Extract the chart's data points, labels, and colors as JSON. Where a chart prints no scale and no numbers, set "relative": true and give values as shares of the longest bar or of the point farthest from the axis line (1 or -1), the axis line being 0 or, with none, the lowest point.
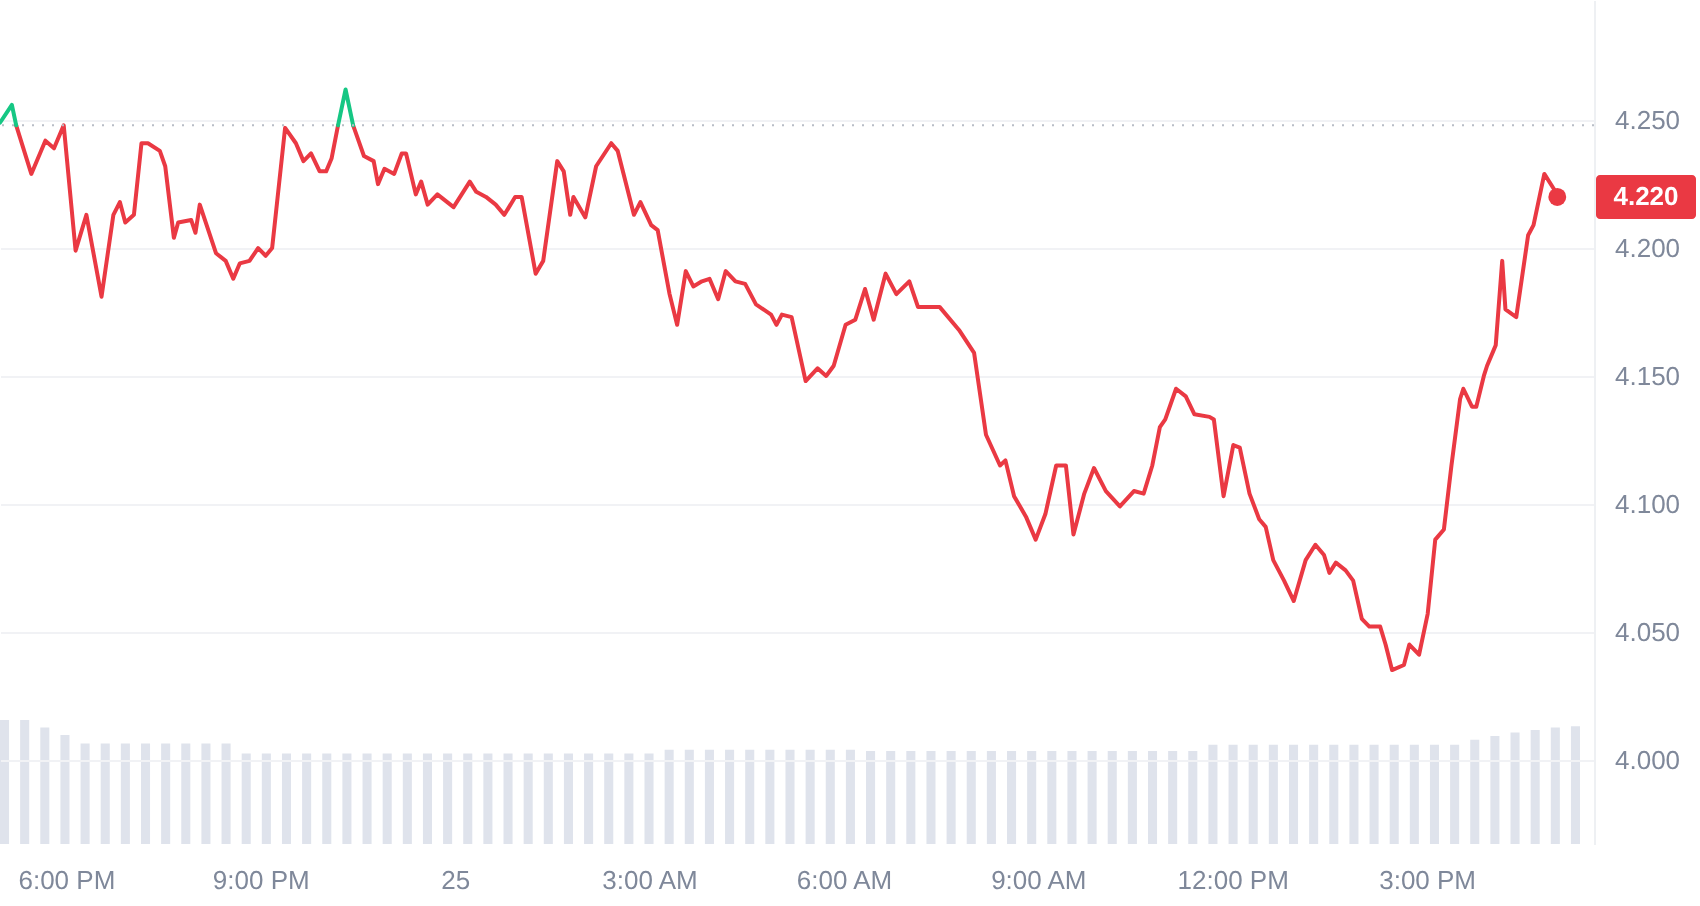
{
  "chart_data": [
    {
      "type": "line",
      "xlim": [
        "--01-24T16:59",
        "--01-25T17:35"
      ],
      "ylim": [
        3.967,
        4.297
      ],
      "xticks": [
        {
          "value": "--01-24T18:00",
          "label": "6:00 PM"
        },
        {
          "value": "--01-24T21:00",
          "label": "9:00 PM"
        },
        {
          "value": "--01-25",
          "label": "25"
        },
        {
          "value": "--01-25T03:00",
          "label": "3:00 AM"
        },
        {
          "value": "--01-25T06:00",
          "label": "6:00 AM"
        },
        {
          "value": "--01-25T09:00",
          "label": "9:00 AM"
        },
        {
          "value": "--01-25T12:00",
          "label": "12:00 PM"
        },
        {
          "value": "--01-25T15:00",
          "label": "3:00 PM"
        }
      ],
      "yticks": [
        {
          "value": 4,
          "label": "4.000"
        },
        {
          "value": 4.05,
          "label": "4.050"
        },
        {
          "value": 4.1,
          "label": "4.100"
        },
        {
          "value": 4.15,
          "label": "4.150"
        },
        {
          "value": 4.2,
          "label": "4.200"
        },
        {
          "value": 4.25,
          "label": "4.250"
        }
      ],
      "grid": "y",
      "ref_lines": [
        {
          "axis": "y",
          "value": 4.248,
          "line_style": "dotted",
          "color": "#b8bdc6"
        }
      ],
      "annotations": [
        {
          "text": "4.220",
          "x": "--01-25T17:01",
          "y": 4.22
        }
      ],
      "series": [
        {
          "color": "#ea3943",
          "x": [
            "--01-24T17:14",
            "--01-24T17:28",
            "--01-24T17:41",
            "--01-24T17:49",
            "--01-24T17:58",
            "--01-24T18:09",
            "--01-24T18:19",
            "--01-24T18:33",
            "--01-24T18:44",
            "--01-24T18:50",
            "--01-24T18:55",
            "--01-24T19:03",
            "--01-24T19:10",
            "--01-24T19:16",
            "--01-24T19:27",
            "--01-24T19:32",
            "--01-24T19:40",
            "--01-24T19:44",
            "--01-24T19:56",
            "--01-24T20:00",
            "--01-24T20:04",
            "--01-24T20:19",
            "--01-24T20:28",
            "--01-24T20:35",
            "--01-24T20:41",
            "--01-24T20:50",
            "--01-24T20:58",
            "--01-24T21:05",
            "--01-24T21:11",
            "--01-24T21:23",
            "--01-24T21:33",
            "--01-24T21:40",
            "--01-24T21:47",
            "--01-24T21:55",
            "--01-24T22:01",
            "--01-24T22:06",
            "--01-24T22:12",
            "--01-24T22:19",
            "--01-24T22:26",
            "--01-24T22:36",
            "--01-24T22:45",
            "--01-24T22:49",
            "--01-24T22:55",
            "--01-24T23:04",
            "--01-24T23:11",
            "--01-24T23:15",
            "--01-24T23:24",
            "--01-24T23:29",
            "--01-24T23:35",
            "--01-24T23:44",
            "--01-24T23:59",
            "--01-25T00:14",
            "--01-25T00:20",
            "--01-25T00:29",
            "--01-25T00:38",
            "--01-25T00:46",
            "--01-25T00:56",
            "--01-25T01:02",
            "--01-25T01:15",
            "--01-25T01:22",
            "--01-25T01:35",
            "--01-25T01:41",
            "--01-25T01:47",
            "--01-25T01:50",
            "--01-25T02:01",
            "--01-25T02:11",
            "--01-25T02:25",
            "--01-25T02:31",
            "--01-25T02:46",
            "--01-25T02:52",
            "--01-25T03:02",
            "--01-25T03:08",
            "--01-25T03:19",
            "--01-25T03:26",
            "--01-25T03:34",
            "--01-25T03:41",
            "--01-25T03:49",
            "--01-25T03:56",
            "--01-25T04:04",
            "--01-25T04:11",
            "--01-25T04:20",
            "--01-25T04:29",
            "--01-25T04:39",
            "--01-25T04:53",
            "--01-25T04:58",
            "--01-25T05:03",
            "--01-25T05:12",
            "--01-25T05:25",
            "--01-25T05:36",
            "--01-25T05:44",
            "--01-25T05:51",
            "--01-25T06:02",
            "--01-25T06:11",
            "--01-25T06:20",
            "--01-25T06:28",
            "--01-25T06:39",
            "--01-25T06:49",
            "--01-25T07:01",
            "--01-25T07:09",
            "--01-25T07:29",
            "--01-25T07:47",
            "--01-25T08:01",
            "--01-25T08:12",
            "--01-25T08:25",
            "--01-25T08:30",
            "--01-25T08:38",
            "--01-25T08:49",
            "--01-25T08:58",
            "--01-25T09:07",
            "--01-25T09:17",
            "--01-25T09:26",
            "--01-25T09:33",
            "--01-25T09:43",
            "--01-25T09:52",
            "--01-25T10:03",
            "--01-25T10:16",
            "--01-25T10:29",
            "--01-25T10:38",
            "--01-25T10:46",
            "--01-25T10:53",
            "--01-25T10:58",
            "--01-25T11:08",
            "--01-25T11:17",
            "--01-25T11:25",
            "--01-25T11:39",
            "--01-25T11:43",
            "--01-25T11:52",
            "--01-25T12:01",
            "--01-25T12:07",
            "--01-25T12:16",
            "--01-25T12:25",
            "--01-25T12:31",
            "--01-25T12:38",
            "--01-25T12:48",
            "--01-25T12:57",
            "--01-25T13:08",
            "--01-25T13:17",
            "--01-25T13:25",
            "--01-25T13:30",
            "--01-25T13:36",
            "--01-25T13:45",
            "--01-25T13:52",
            "--01-25T14:00",
            "--01-25T14:07",
            "--01-25T14:17",
            "--01-25T14:22",
            "--01-25T14:28",
            "--01-25T14:39",
            "--01-25T14:44",
            "--01-25T14:53",
            "--01-25T15:01",
            "--01-25T15:08",
            "--01-25T15:16",
            "--01-25T15:23",
            "--01-25T15:31",
            "--01-25T15:34",
            "--01-25T15:42",
            "--01-25T15:46",
            "--01-25T15:53",
            "--01-25T15:56",
            "--01-25T16:02",
            "--01-25T16:04",
            "--01-25T16:10",
            "--01-25T16:13",
            "--01-25T16:23",
            "--01-25T16:34",
            "--01-25T16:39",
            "--01-25T16:49",
            "--01-25T16:58",
            "--01-25T17:01"
          ],
          "values": [
            4.248,
            4.229,
            4.242,
            4.239,
            4.248,
            4.199,
            4.213,
            4.181,
            4.213,
            4.218,
            4.21,
            4.213,
            4.241,
            4.241,
            4.238,
            4.232,
            4.204,
            4.21,
            4.211,
            4.206,
            4.217,
            4.198,
            4.195,
            4.188,
            4.194,
            4.195,
            4.2,
            4.197,
            4.2,
            4.247,
            4.241,
            4.234,
            4.237,
            4.23,
            4.23,
            4.235,
            4.248,
            null,
            4.248,
            4.236,
            4.234,
            4.225,
            4.231,
            4.229,
            4.237,
            4.237,
            4.221,
            4.226,
            4.217,
            4.221,
            4.216,
            4.226,
            4.222,
            4.22,
            4.217,
            4.213,
            4.22,
            4.22,
            4.19,
            4.195,
            4.234,
            4.23,
            4.213,
            4.22,
            4.212,
            4.232,
            4.241,
            4.238,
            4.213,
            4.218,
            4.209,
            4.207,
            4.182,
            4.17,
            4.191,
            4.185,
            4.187,
            4.188,
            4.18,
            4.191,
            4.187,
            4.186,
            4.178,
            4.174,
            4.17,
            4.174,
            4.173,
            4.148,
            4.153,
            4.15,
            4.154,
            4.17,
            4.172,
            4.184,
            4.172,
            4.19,
            4.182,
            4.187,
            4.177,
            4.177,
            4.168,
            4.159,
            4.127,
            4.115,
            4.117,
            4.103,
            4.095,
            4.086,
            4.096,
            4.115,
            4.115,
            4.088,
            4.104,
            4.114,
            4.105,
            4.099,
            4.105,
            4.104,
            4.115,
            4.13,
            4.133,
            4.145,
            4.142,
            4.135,
            4.134,
            4.133,
            4.103,
            4.123,
            4.122,
            4.104,
            4.094,
            4.091,
            4.078,
            4.07,
            4.062,
            4.078,
            4.084,
            4.08,
            4.073,
            4.077,
            4.074,
            4.07,
            4.055,
            4.052,
            4.052,
            4.045,
            4.035,
            4.037,
            4.045,
            4.041,
            4.057,
            4.086,
            4.09,
            4.115,
            4.141,
            4.145,
            4.138,
            4.138,
            4.15,
            4.154,
            4.16,
            4.162,
            4.195,
            4.176,
            4.173,
            4.205,
            4.209,
            4.229,
            4.223,
            4.22
          ]
        },
        {
          "color": "#16c784",
          "x": [
            "--01-24T16:59",
            "--01-24T17:10",
            "--01-24T17:14"
          ],
          "values": [
            4.249,
            4.256,
            4.248
          ]
        },
        {
          "color": "#16c784",
          "x": [
            "--01-24T22:12",
            "--01-24T22:19",
            "--01-24T22:26"
          ],
          "values": [
            4.248,
            4.262,
            4.248
          ]
        }
      ]
    },
    {
      "type": "bar",
      "relative": true,
      "color": "#dfe3ec",
      "categories": [
        null,
        null,
        null,
        null,
        null,
        null,
        null,
        null,
        null,
        null,
        null,
        null,
        null,
        null,
        null,
        null,
        null,
        null,
        null,
        null,
        null,
        null,
        null,
        null,
        null,
        null,
        null,
        null,
        null,
        null,
        null,
        null,
        null,
        null,
        null,
        null,
        null,
        null,
        null,
        null,
        null,
        null,
        null,
        null,
        null,
        null,
        null,
        null,
        null,
        null,
        null,
        null,
        null,
        null,
        null,
        null,
        null,
        null,
        null,
        null,
        null,
        null,
        null,
        null,
        null,
        null,
        null,
        null,
        null,
        null,
        null,
        null,
        null,
        null,
        null,
        null,
        null,
        null,
        null
      ],
      "values": [
        1,
        1,
        0.94,
        0.88,
        0.81,
        0.81,
        0.81,
        0.81,
        0.81,
        0.81,
        0.81,
        0.81,
        0.73,
        0.73,
        0.73,
        0.73,
        0.73,
        0.73,
        0.73,
        0.73,
        0.73,
        0.73,
        0.73,
        0.73,
        0.73,
        0.73,
        0.73,
        0.73,
        0.73,
        0.73,
        0.73,
        0.73,
        0.73,
        0.76,
        0.76,
        0.76,
        0.76,
        0.76,
        0.76,
        0.76,
        0.76,
        0.76,
        0.76,
        0.75,
        0.75,
        0.75,
        0.75,
        0.75,
        0.75,
        0.75,
        0.75,
        0.75,
        0.75,
        0.75,
        0.75,
        0.75,
        0.75,
        0.75,
        0.75,
        0.75,
        0.8,
        0.8,
        0.8,
        0.8,
        0.8,
        0.8,
        0.8,
        0.8,
        0.8,
        0.8,
        0.8,
        0.8,
        0.8,
        0.84,
        0.87,
        0.9,
        0.92,
        0.94,
        0.95
      ]
    }
  ]
}
